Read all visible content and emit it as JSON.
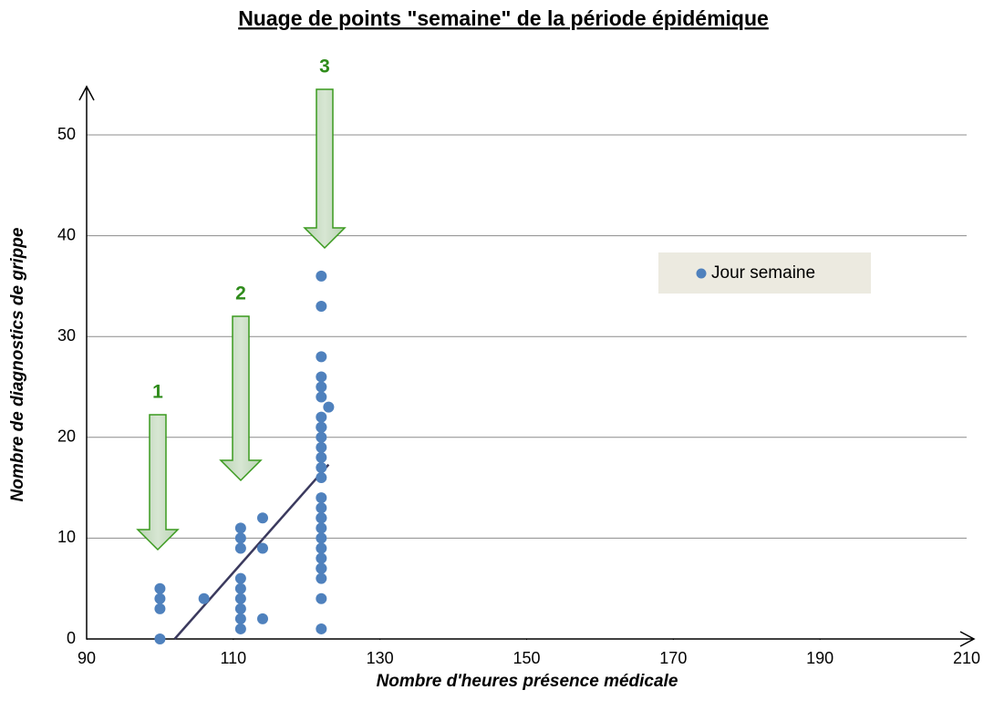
{
  "chart_data": {
    "type": "scatter",
    "title": "Nuage de points \"semaine\" de la période épidémique",
    "xlabel": "Nombre d'heures présence médicale",
    "ylabel": "Nombre de diagnostics de grippe",
    "series": [
      {
        "name": "Jour semaine",
        "color": "#4f81bd",
        "x": [
          100,
          100,
          100,
          100,
          106,
          111,
          111,
          111,
          111,
          111,
          111,
          111,
          111,
          111,
          114,
          114,
          114,
          122,
          122,
          122,
          122,
          122,
          122,
          122,
          122,
          122,
          122,
          122,
          122,
          122,
          122,
          122,
          122,
          122,
          122,
          122,
          122,
          122,
          122,
          122,
          122,
          122,
          122,
          122,
          123
        ],
        "y": [
          0,
          3,
          4,
          5,
          4,
          1,
          2,
          3,
          4,
          5,
          6,
          9,
          10,
          11,
          2,
          9,
          12,
          1,
          4,
          6,
          7,
          7,
          8,
          9,
          10,
          11,
          12,
          12,
          13,
          14,
          16,
          17,
          18,
          19,
          20,
          21,
          21,
          22,
          24,
          25,
          26,
          28,
          33,
          36,
          23
        ]
      }
    ],
    "trendline": {
      "color": "#3b3a5e",
      "x": [
        102,
        123
      ],
      "y": [
        0,
        17.3
      ]
    },
    "annotations": [
      {
        "text": "1"
      },
      {
        "text": "2"
      },
      {
        "text": "3"
      }
    ],
    "xlim": [
      90,
      210
    ],
    "xticks": [
      90,
      110,
      130,
      150,
      170,
      190,
      210
    ],
    "ylim": [
      0,
      50
    ],
    "yticks": [
      0,
      10,
      20,
      30,
      40,
      50
    ],
    "grid": true
  }
}
